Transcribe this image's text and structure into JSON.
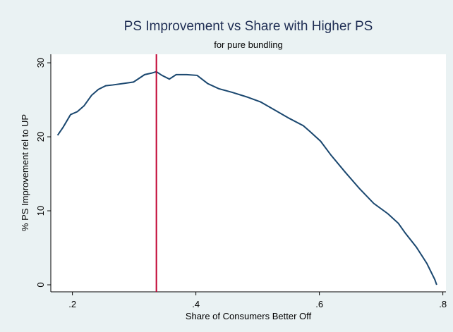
{
  "chart_data": {
    "type": "line",
    "title": "PS Improvement vs Share with Higher PS",
    "subtitle": "for pure bundling",
    "x_label": "Share of Consumers Better Off",
    "y_label": "% PS Improvement rel to UP",
    "x": [
      0.176,
      0.185,
      0.197,
      0.208,
      0.219,
      0.231,
      0.242,
      0.254,
      0.265,
      0.282,
      0.299,
      0.317,
      0.328,
      0.336,
      0.345,
      0.357,
      0.368,
      0.385,
      0.402,
      0.419,
      0.437,
      0.459,
      0.482,
      0.505,
      0.528,
      0.551,
      0.574,
      0.585,
      0.602,
      0.619,
      0.642,
      0.665,
      0.688,
      0.711,
      0.728,
      0.739,
      0.757,
      0.774,
      0.787,
      0.79
    ],
    "series": [
      {
        "color": "#1a476f",
        "values": [
          20.2,
          21.3,
          23.0,
          23.4,
          24.2,
          25.6,
          26.4,
          26.9,
          27.0,
          27.2,
          27.4,
          28.4,
          28.6,
          28.8,
          28.3,
          27.8,
          28.4,
          28.4,
          28.3,
          27.2,
          26.5,
          26.0,
          25.4,
          24.7,
          23.6,
          22.5,
          21.5,
          20.7,
          19.4,
          17.5,
          15.2,
          13.0,
          11.0,
          9.6,
          8.3,
          7.0,
          5.1,
          2.9,
          0.7,
          0.0
        ]
      }
    ],
    "xline": {
      "value": 0.336,
      "color": "#c10534"
    },
    "xlim": [
      0.165,
      0.805
    ],
    "ylim": [
      -0.95,
      31.15
    ],
    "xticks": [
      {
        "value": 0.2,
        "label": ".2"
      },
      {
        "value": 0.4,
        "label": ".4"
      },
      {
        "value": 0.6,
        "label": ".6"
      },
      {
        "value": 0.8,
        "label": ".8"
      }
    ],
    "yticks": [
      0,
      10,
      20,
      30
    ]
  }
}
